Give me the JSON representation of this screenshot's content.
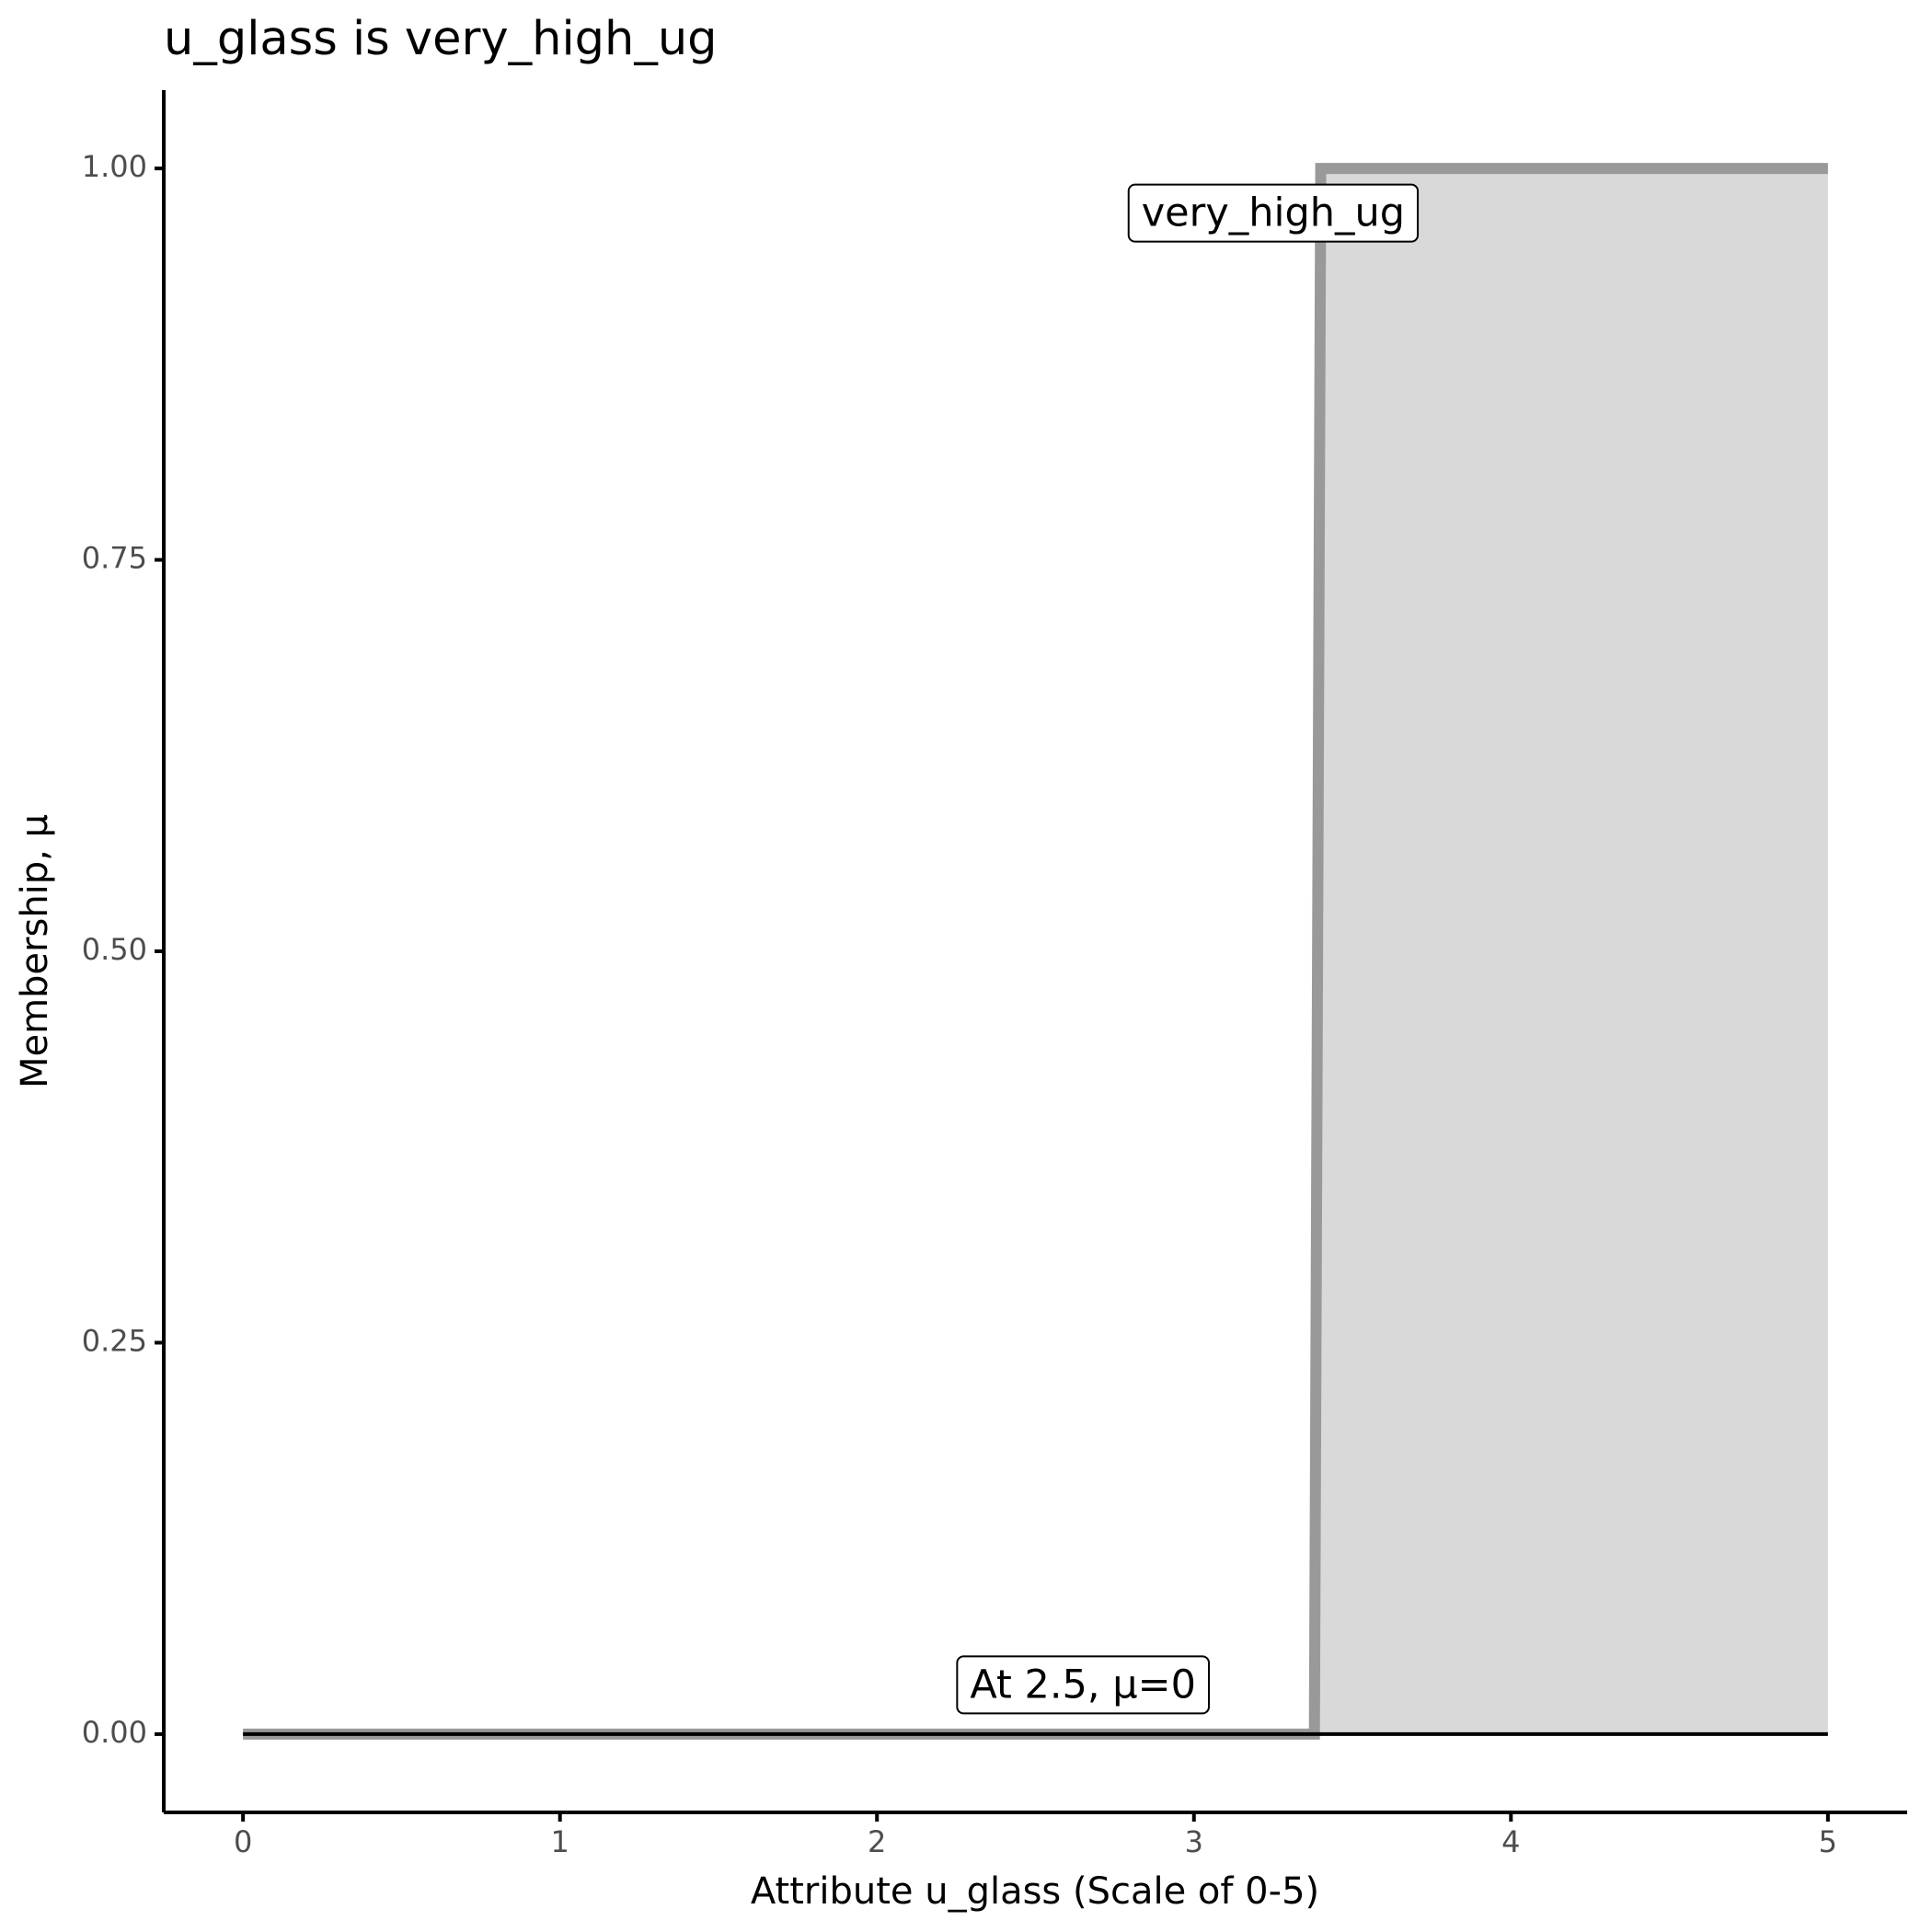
{
  "chart_data": {
    "type": "line",
    "title": "u_glass is very_high_ug",
    "xlabel": "Attribute u_glass (Scale of 0-5)",
    "ylabel": "Membership, μ",
    "series": [
      {
        "name": "very_high_ug",
        "color": "#999999",
        "fill": "#d9d9d9",
        "x": [
          0,
          3.38,
          3.4,
          5
        ],
        "values": [
          0,
          0,
          1,
          1
        ]
      },
      {
        "color": "#000000",
        "x": [
          0,
          5
        ],
        "values": [
          0,
          0
        ]
      }
    ],
    "annotations": [
      "At 2.5, μ=0"
    ],
    "xlim": [
      -0.25,
      5.25
    ],
    "xticks": [
      0,
      1,
      2,
      3,
      4,
      5
    ],
    "ylim": [
      -0.05,
      1.05
    ],
    "yticks": [
      {
        "value": 0,
        "label": "0.00"
      },
      {
        "value": 0.25,
        "label": "0.25"
      },
      {
        "value": 0.5,
        "label": "0.50"
      },
      {
        "value": 0.75,
        "label": "0.75"
      },
      {
        "value": 1,
        "label": "1.00"
      }
    ],
    "grid": false
  }
}
